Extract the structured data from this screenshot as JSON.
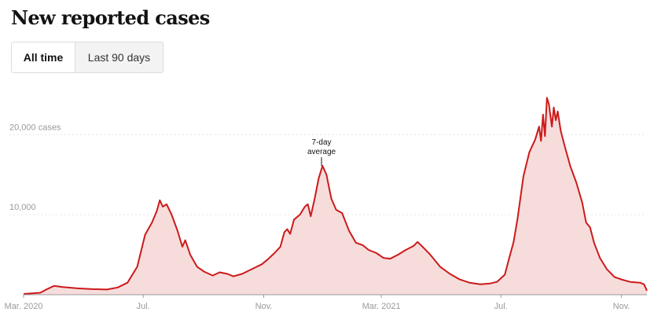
{
  "title": "New reported cases",
  "toggle": {
    "all_time": "All time",
    "last_90": "Last 90 days",
    "selected": "All time"
  },
  "chart_data": {
    "type": "area",
    "title": "New reported cases",
    "ylabel": "",
    "ylim": [
      0,
      27000
    ],
    "y_ticks": [
      {
        "value": 10000,
        "label": "10,000"
      },
      {
        "value": 20000,
        "label": "20,000 cases"
      }
    ],
    "x_range": [
      "2020-03-01",
      "2021-11-27"
    ],
    "x_ticks": [
      {
        "date": "2020-03-01",
        "label": "Mar. 2020"
      },
      {
        "date": "2020-07-01",
        "label": "Jul."
      },
      {
        "date": "2020-11-01",
        "label": "Nov."
      },
      {
        "date": "2021-03-01",
        "label": "Mar. 2021"
      },
      {
        "date": "2021-07-01",
        "label": "Jul."
      },
      {
        "date": "2021-11-01",
        "label": "Nov."
      }
    ],
    "grid": "dashed horizontal",
    "line_color": "#cc1a1a",
    "fill_color": "#f7dcdc",
    "annotation": {
      "text_line1": "7-day",
      "text_line2": "average",
      "date": "2020-12-30",
      "value": 16000
    },
    "series": [
      {
        "name": "",
        "points": [
          [
            "2020-03-01",
            100
          ],
          [
            "2020-03-18",
            250
          ],
          [
            "2020-03-25",
            700
          ],
          [
            "2020-04-01",
            1100
          ],
          [
            "2020-04-10",
            950
          ],
          [
            "2020-04-25",
            800
          ],
          [
            "2020-05-10",
            700
          ],
          [
            "2020-05-25",
            650
          ],
          [
            "2020-06-05",
            900
          ],
          [
            "2020-06-15",
            1500
          ],
          [
            "2020-06-25",
            3500
          ],
          [
            "2020-07-03",
            7500
          ],
          [
            "2020-07-10",
            9000
          ],
          [
            "2020-07-15",
            10500
          ],
          [
            "2020-07-18",
            11800
          ],
          [
            "2020-07-21",
            11000
          ],
          [
            "2020-07-25",
            11300
          ],
          [
            "2020-07-30",
            10000
          ],
          [
            "2020-08-05",
            8000
          ],
          [
            "2020-08-10",
            6000
          ],
          [
            "2020-08-13",
            6800
          ],
          [
            "2020-08-18",
            5000
          ],
          [
            "2020-08-25",
            3500
          ],
          [
            "2020-09-01",
            2900
          ],
          [
            "2020-09-10",
            2400
          ],
          [
            "2020-09-17",
            2800
          ],
          [
            "2020-09-25",
            2600
          ],
          [
            "2020-10-01",
            2300
          ],
          [
            "2020-10-10",
            2600
          ],
          [
            "2020-10-20",
            3200
          ],
          [
            "2020-10-30",
            3800
          ],
          [
            "2020-11-05",
            4400
          ],
          [
            "2020-11-12",
            5200
          ],
          [
            "2020-11-18",
            6000
          ],
          [
            "2020-11-22",
            7800
          ],
          [
            "2020-11-25",
            8200
          ],
          [
            "2020-11-28",
            7600
          ],
          [
            "2020-12-02",
            9400
          ],
          [
            "2020-12-08",
            10000
          ],
          [
            "2020-12-13",
            11000
          ],
          [
            "2020-12-16",
            11300
          ],
          [
            "2020-12-19",
            9800
          ],
          [
            "2020-12-23",
            12000
          ],
          [
            "2020-12-27",
            14500
          ],
          [
            "2020-12-31",
            16100
          ],
          [
            "2021-01-04",
            15000
          ],
          [
            "2021-01-09",
            12000
          ],
          [
            "2021-01-14",
            10600
          ],
          [
            "2021-01-20",
            10200
          ],
          [
            "2021-01-27",
            8000
          ],
          [
            "2021-02-03",
            6500
          ],
          [
            "2021-02-10",
            6200
          ],
          [
            "2021-02-16",
            5600
          ],
          [
            "2021-02-24",
            5200
          ],
          [
            "2021-03-03",
            4600
          ],
          [
            "2021-03-10",
            4500
          ],
          [
            "2021-03-18",
            5000
          ],
          [
            "2021-03-26",
            5600
          ],
          [
            "2021-04-03",
            6100
          ],
          [
            "2021-04-07",
            6600
          ],
          [
            "2021-04-12",
            6000
          ],
          [
            "2021-04-20",
            5000
          ],
          [
            "2021-04-30",
            3500
          ],
          [
            "2021-05-10",
            2600
          ],
          [
            "2021-05-20",
            1900
          ],
          [
            "2021-05-30",
            1500
          ],
          [
            "2021-06-10",
            1300
          ],
          [
            "2021-06-20",
            1400
          ],
          [
            "2021-06-27",
            1600
          ],
          [
            "2021-07-05",
            2500
          ],
          [
            "2021-07-10",
            4800
          ],
          [
            "2021-07-14",
            6600
          ],
          [
            "2021-07-18",
            9500
          ],
          [
            "2021-07-24",
            14800
          ],
          [
            "2021-07-30",
            17800
          ],
          [
            "2021-08-05",
            19400
          ],
          [
            "2021-08-09",
            21000
          ],
          [
            "2021-08-11",
            19200
          ],
          [
            "2021-08-13",
            22500
          ],
          [
            "2021-08-15",
            19800
          ],
          [
            "2021-08-17",
            24600
          ],
          [
            "2021-08-19",
            23800
          ],
          [
            "2021-08-22",
            21000
          ],
          [
            "2021-08-24",
            23400
          ],
          [
            "2021-08-26",
            21800
          ],
          [
            "2021-08-28",
            22900
          ],
          [
            "2021-08-31",
            20500
          ],
          [
            "2021-09-04",
            18600
          ],
          [
            "2021-09-10",
            16000
          ],
          [
            "2021-09-16",
            14000
          ],
          [
            "2021-09-22",
            11500
          ],
          [
            "2021-09-26",
            9000
          ],
          [
            "2021-09-30",
            8400
          ],
          [
            "2021-10-04",
            6500
          ],
          [
            "2021-10-10",
            4600
          ],
          [
            "2021-10-17",
            3200
          ],
          [
            "2021-10-25",
            2200
          ],
          [
            "2021-11-01",
            1900
          ],
          [
            "2021-11-10",
            1600
          ],
          [
            "2021-11-20",
            1500
          ],
          [
            "2021-11-24",
            1300
          ],
          [
            "2021-11-27",
            500
          ]
        ]
      }
    ]
  }
}
